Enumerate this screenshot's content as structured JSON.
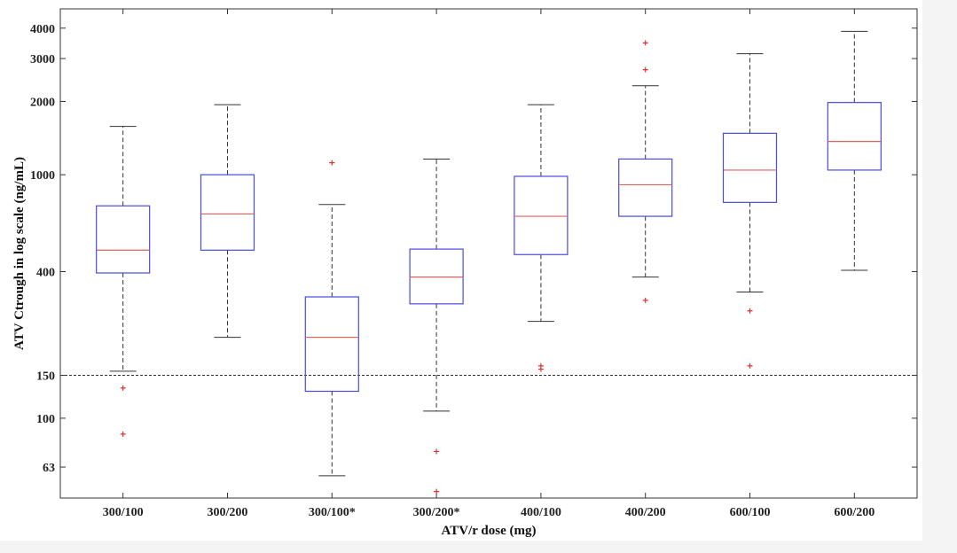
{
  "chart_data": {
    "type": "box",
    "xlabel": "ATV/r dose (mg)",
    "ylabel": "ATV Ctrough in log scale (ng/mL)",
    "yscale": "log",
    "ylim": [
      47,
      4800
    ],
    "yticks": [
      63,
      100,
      150,
      400,
      1000,
      2000,
      3000,
      4000
    ],
    "ytick_labels": [
      "63",
      "100",
      "150",
      "400",
      "1000",
      "2000",
      "3000",
      "4000"
    ],
    "reference_line": {
      "y": 150,
      "style": "dashed"
    },
    "categories": [
      "300/100",
      "300/200",
      "300/100*",
      "300/200*",
      "400/100",
      "400/200",
      "600/100",
      "600/200"
    ],
    "boxes": [
      {
        "category": "300/100",
        "whisker_low": 156,
        "q1": 395,
        "median": 490,
        "q3": 745,
        "whisker_high": 1580,
        "outliers": [
          133,
          86
        ]
      },
      {
        "category": "300/200",
        "whisker_low": 215,
        "q1": 490,
        "median": 690,
        "q3": 1000,
        "whisker_high": 1940,
        "outliers": []
      },
      {
        "category": "300/100*",
        "whisker_low": 58,
        "q1": 129,
        "median": 215,
        "q3": 315,
        "whisker_high": 755,
        "outliers": [
          1120
        ]
      },
      {
        "category": "300/200*",
        "whisker_low": 107,
        "q1": 295,
        "median": 380,
        "q3": 495,
        "whisker_high": 1160,
        "outliers": [
          73,
          50
        ]
      },
      {
        "category": "400/100",
        "whisker_low": 250,
        "q1": 470,
        "median": 675,
        "q3": 985,
        "whisker_high": 1940,
        "outliers": [
          164,
          159
        ]
      },
      {
        "category": "400/200",
        "whisker_low": 380,
        "q1": 675,
        "median": 910,
        "q3": 1160,
        "whisker_high": 2320,
        "outliers": [
          3480,
          2700,
          305
        ]
      },
      {
        "category": "600/100",
        "whisker_low": 330,
        "q1": 770,
        "median": 1045,
        "q3": 1480,
        "whisker_high": 3140,
        "outliers": [
          276,
          164
        ]
      },
      {
        "category": "600/200",
        "whisker_low": 405,
        "q1": 1045,
        "median": 1370,
        "q3": 1980,
        "whisker_high": 3880,
        "outliers": []
      }
    ],
    "colors": {
      "box": "#4a4adf",
      "median": "#e06060",
      "whisker": "#333333",
      "outlier": "#e03030"
    },
    "grid": false,
    "legend": "none"
  }
}
